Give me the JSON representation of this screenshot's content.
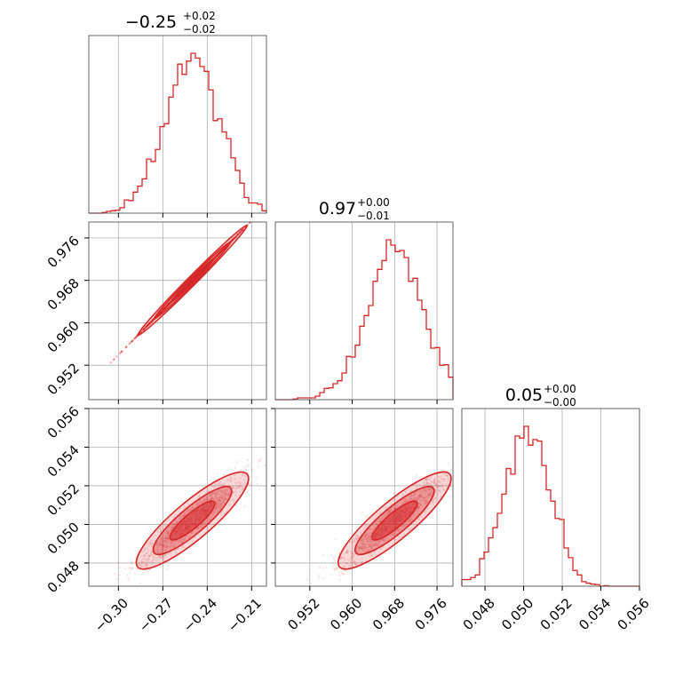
{
  "chart_data": {
    "type": "corner",
    "color": "#d62728",
    "params": [
      {
        "title": {
          "median": "0.25",
          "sign": "−",
          "plus": "+0.02",
          "minus": "−0.02"
        },
        "range": [
          -0.32,
          -0.2
        ],
        "ticks": [
          -0.3,
          -0.27,
          -0.24,
          -0.21
        ],
        "tick_labels": [
          "−0.30",
          "−0.27",
          "−0.24",
          "−0.21"
        ],
        "hist_mean": -0.25,
        "hist_sd": 0.0185
      },
      {
        "title": {
          "median": "0.97",
          "sign": "",
          "plus": "+0.00",
          "minus": "−0.01"
        },
        "range": [
          0.9455,
          0.979
        ],
        "ticks": [
          0.952,
          0.96,
          0.968,
          0.976
        ],
        "tick_labels": [
          "0.952",
          "0.960",
          "0.968",
          "0.976"
        ],
        "hist_mean": 0.968,
        "hist_sd": 0.0052
      },
      {
        "title": {
          "median": "0.05",
          "sign": "",
          "plus": "+0.00",
          "minus": "−0.00"
        },
        "range": [
          0.0468,
          0.056
        ],
        "ticks": [
          0.048,
          0.05,
          0.052,
          0.054,
          0.056
        ],
        "tick_labels": [
          "0.048",
          "0.050",
          "0.052",
          "0.054",
          "0.056"
        ],
        "hist_mean": 0.0502,
        "hist_sd": 0.0012
      }
    ]
  }
}
